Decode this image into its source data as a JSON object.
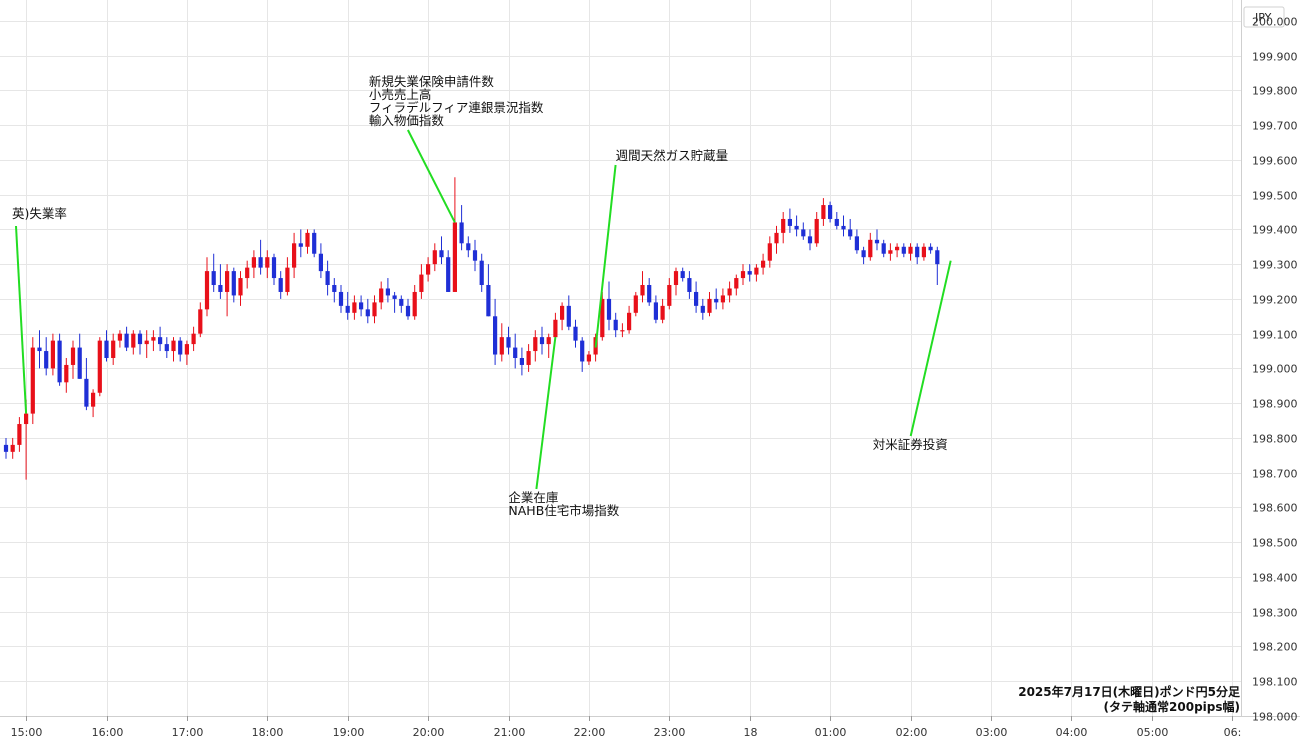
{
  "chart_data": {
    "type": "candlestick",
    "title": "2025年7月17日(木曜日)ポンド円5分足",
    "subtitle": "(タテ軸通常200pips幅)",
    "currency": "JPY",
    "colors": {
      "up": "#e8101a",
      "down": "#1f2fd6",
      "annotation_line": "#22dd22",
      "grid": "#e6e6e6"
    },
    "y_axis": {
      "range": [
        198.0,
        200.06
      ],
      "ticks": [
        "200.000",
        "199.900",
        "199.800",
        "199.700",
        "199.600",
        "199.500",
        "199.400",
        "199.300",
        "199.200",
        "199.100",
        "199.000",
        "198.900",
        "198.800",
        "198.700",
        "198.600",
        "198.500",
        "198.400",
        "198.300",
        "198.200",
        "198.100",
        "198.000"
      ]
    },
    "x_axis": {
      "ticks": [
        {
          "label": "15:00",
          "bar": 3
        },
        {
          "label": "16:00",
          "bar": 15
        },
        {
          "label": "17:00",
          "bar": 27
        },
        {
          "label": "18:00",
          "bar": 39
        },
        {
          "label": "19:00",
          "bar": 51
        },
        {
          "label": "20:00",
          "bar": 63
        },
        {
          "label": "21:00",
          "bar": 75
        },
        {
          "label": "22:00",
          "bar": 87
        },
        {
          "label": "23:00",
          "bar": 99
        },
        {
          "label": "18",
          "bar": 111
        },
        {
          "label": "01:00",
          "bar": 123
        },
        {
          "label": "02:00",
          "bar": 135
        },
        {
          "label": "03:00",
          "bar": 147
        },
        {
          "label": "04:00",
          "bar": 159
        },
        {
          "label": "05:00",
          "bar": 171
        },
        {
          "label": "06:",
          "bar": 183
        }
      ]
    },
    "candles": [
      [
        198.78,
        198.8,
        198.74,
        198.76
      ],
      [
        198.76,
        198.8,
        198.74,
        198.78
      ],
      [
        198.78,
        198.86,
        198.76,
        198.84
      ],
      [
        198.84,
        198.91,
        198.68,
        198.87
      ],
      [
        198.87,
        199.09,
        198.84,
        199.06
      ],
      [
        199.06,
        199.11,
        199.0,
        199.05
      ],
      [
        199.05,
        199.09,
        198.98,
        199.0
      ],
      [
        199.0,
        199.1,
        198.98,
        199.08
      ],
      [
        199.08,
        199.1,
        198.95,
        198.96
      ],
      [
        198.96,
        199.03,
        198.93,
        199.01
      ],
      [
        199.01,
        199.08,
        198.97,
        199.06
      ],
      [
        199.06,
        199.1,
        198.97,
        198.97
      ],
      [
        198.97,
        199.03,
        198.88,
        198.89
      ],
      [
        198.89,
        198.94,
        198.86,
        198.93
      ],
      [
        198.93,
        199.09,
        198.92,
        199.08
      ],
      [
        199.08,
        199.11,
        199.02,
        199.03
      ],
      [
        199.03,
        199.1,
        199.01,
        199.08
      ],
      [
        199.08,
        199.11,
        199.06,
        199.1
      ],
      [
        199.1,
        199.12,
        199.05,
        199.06
      ],
      [
        199.06,
        199.11,
        199.04,
        199.1
      ],
      [
        199.1,
        199.11,
        199.04,
        199.07
      ],
      [
        199.07,
        199.11,
        199.03,
        199.08
      ],
      [
        199.08,
        199.11,
        199.05,
        199.09
      ],
      [
        199.09,
        199.12,
        199.05,
        199.07
      ],
      [
        199.07,
        199.09,
        199.03,
        199.05
      ],
      [
        199.05,
        199.09,
        199.02,
        199.08
      ],
      [
        199.08,
        199.09,
        199.02,
        199.04
      ],
      [
        199.04,
        199.08,
        199.01,
        199.07
      ],
      [
        199.07,
        199.12,
        199.05,
        199.1
      ],
      [
        199.1,
        199.19,
        199.09,
        199.17
      ],
      [
        199.17,
        199.32,
        199.15,
        199.28
      ],
      [
        199.28,
        199.33,
        199.22,
        199.24
      ],
      [
        199.24,
        199.3,
        199.2,
        199.22
      ],
      [
        199.22,
        199.3,
        199.15,
        199.28
      ],
      [
        199.28,
        199.29,
        199.19,
        199.21
      ],
      [
        199.21,
        199.28,
        199.18,
        199.26
      ],
      [
        199.26,
        199.31,
        199.23,
        199.29
      ],
      [
        199.29,
        199.34,
        199.26,
        199.32
      ],
      [
        199.32,
        199.37,
        199.27,
        199.29
      ],
      [
        199.29,
        199.34,
        199.26,
        199.32
      ],
      [
        199.32,
        199.33,
        199.24,
        199.26
      ],
      [
        199.26,
        199.28,
        199.2,
        199.22
      ],
      [
        199.22,
        199.32,
        199.21,
        199.29
      ],
      [
        199.29,
        199.39,
        199.26,
        199.36
      ],
      [
        199.36,
        199.4,
        199.32,
        199.35
      ],
      [
        199.35,
        199.4,
        199.33,
        199.39
      ],
      [
        199.39,
        199.4,
        199.32,
        199.33
      ],
      [
        199.33,
        199.36,
        199.26,
        199.28
      ],
      [
        199.28,
        199.31,
        199.21,
        199.24
      ],
      [
        199.24,
        199.26,
        199.19,
        199.22
      ],
      [
        199.22,
        199.24,
        199.16,
        199.18
      ],
      [
        199.18,
        199.22,
        199.14,
        199.16
      ],
      [
        199.16,
        199.21,
        199.14,
        199.19
      ],
      [
        199.19,
        199.21,
        199.15,
        199.17
      ],
      [
        199.17,
        199.2,
        199.13,
        199.15
      ],
      [
        199.15,
        199.21,
        199.13,
        199.19
      ],
      [
        199.19,
        199.25,
        199.17,
        199.23
      ],
      [
        199.23,
        199.26,
        199.19,
        199.21
      ],
      [
        199.21,
        199.22,
        199.16,
        199.2
      ],
      [
        199.2,
        199.21,
        199.16,
        199.18
      ],
      [
        199.18,
        199.2,
        199.14,
        199.15
      ],
      [
        199.15,
        199.24,
        199.14,
        199.22
      ],
      [
        199.22,
        199.3,
        199.2,
        199.27
      ],
      [
        199.27,
        199.32,
        199.25,
        199.3
      ],
      [
        199.3,
        199.36,
        199.28,
        199.34
      ],
      [
        199.34,
        199.38,
        199.3,
        199.32
      ],
      [
        199.32,
        199.34,
        199.22,
        199.22
      ],
      [
        199.22,
        199.55,
        199.22,
        199.42
      ],
      [
        199.42,
        199.47,
        199.34,
        199.36
      ],
      [
        199.36,
        199.38,
        199.32,
        199.34
      ],
      [
        199.34,
        199.37,
        199.28,
        199.31
      ],
      [
        199.31,
        199.33,
        199.22,
        199.24
      ],
      [
        199.24,
        199.3,
        199.15,
        199.15
      ],
      [
        199.15,
        199.2,
        199.01,
        199.04
      ],
      [
        199.04,
        199.13,
        199.02,
        199.09
      ],
      [
        199.09,
        199.12,
        199.04,
        199.06
      ],
      [
        199.06,
        199.1,
        199.0,
        199.03
      ],
      [
        199.03,
        199.06,
        198.98,
        199.01
      ],
      [
        199.01,
        199.07,
        198.99,
        199.05
      ],
      [
        199.05,
        199.11,
        199.02,
        199.09
      ],
      [
        199.09,
        199.12,
        199.04,
        199.07
      ],
      [
        199.07,
        199.1,
        199.03,
        199.09
      ],
      [
        199.09,
        199.16,
        199.08,
        199.14
      ],
      [
        199.14,
        199.19,
        199.11,
        199.18
      ],
      [
        199.18,
        199.21,
        199.11,
        199.12
      ],
      [
        199.12,
        199.14,
        199.06,
        199.08
      ],
      [
        199.08,
        199.09,
        198.99,
        199.02
      ],
      [
        199.02,
        199.05,
        199.01,
        199.04
      ],
      [
        199.04,
        199.1,
        199.02,
        199.09
      ],
      [
        199.09,
        199.22,
        199.08,
        199.2
      ],
      [
        199.2,
        199.25,
        199.11,
        199.14
      ],
      [
        199.14,
        199.16,
        199.09,
        199.11
      ],
      [
        199.11,
        199.13,
        199.09,
        199.11
      ],
      [
        199.11,
        199.18,
        199.1,
        199.16
      ],
      [
        199.16,
        199.22,
        199.15,
        199.21
      ],
      [
        199.21,
        199.28,
        199.19,
        199.24
      ],
      [
        199.24,
        199.26,
        199.18,
        199.19
      ],
      [
        199.19,
        199.21,
        199.13,
        199.14
      ],
      [
        199.14,
        199.2,
        199.13,
        199.18
      ],
      [
        199.18,
        199.26,
        199.17,
        199.24
      ],
      [
        199.24,
        199.29,
        199.21,
        199.28
      ],
      [
        199.28,
        199.29,
        199.25,
        199.26
      ],
      [
        199.26,
        199.28,
        199.2,
        199.22
      ],
      [
        199.22,
        199.25,
        199.16,
        199.18
      ],
      [
        199.18,
        199.2,
        199.14,
        199.16
      ],
      [
        199.16,
        199.22,
        199.15,
        199.2
      ],
      [
        199.2,
        199.23,
        199.17,
        199.19
      ],
      [
        199.19,
        199.23,
        199.17,
        199.21
      ],
      [
        199.21,
        199.25,
        199.19,
        199.23
      ],
      [
        199.23,
        199.27,
        199.21,
        199.26
      ],
      [
        199.26,
        199.3,
        199.24,
        199.28
      ],
      [
        199.28,
        199.3,
        199.25,
        199.27
      ],
      [
        199.27,
        199.3,
        199.25,
        199.29
      ],
      [
        199.29,
        199.33,
        199.27,
        199.31
      ],
      [
        199.31,
        199.38,
        199.29,
        199.36
      ],
      [
        199.36,
        199.41,
        199.33,
        199.39
      ],
      [
        199.39,
        199.45,
        199.36,
        199.43
      ],
      [
        199.43,
        199.46,
        199.39,
        199.41
      ],
      [
        199.41,
        199.44,
        199.38,
        199.4
      ],
      [
        199.4,
        199.42,
        199.37,
        199.38
      ],
      [
        199.38,
        199.4,
        199.34,
        199.36
      ],
      [
        199.36,
        199.45,
        199.35,
        199.43
      ],
      [
        199.43,
        199.49,
        199.41,
        199.47
      ],
      [
        199.47,
        199.48,
        199.42,
        199.43
      ],
      [
        199.43,
        199.45,
        199.4,
        199.41
      ],
      [
        199.41,
        199.44,
        199.38,
        199.4
      ],
      [
        199.4,
        199.43,
        199.37,
        199.38
      ],
      [
        199.38,
        199.4,
        199.33,
        199.34
      ],
      [
        199.34,
        199.35,
        199.3,
        199.32
      ],
      [
        199.32,
        199.39,
        199.31,
        199.37
      ],
      [
        199.37,
        199.4,
        199.34,
        199.36
      ],
      [
        199.36,
        199.37,
        199.32,
        199.33
      ],
      [
        199.33,
        199.36,
        199.31,
        199.34
      ],
      [
        199.34,
        199.36,
        199.32,
        199.35
      ],
      [
        199.35,
        199.36,
        199.32,
        199.33
      ],
      [
        199.33,
        199.36,
        199.31,
        199.35
      ],
      [
        199.35,
        199.36,
        199.3,
        199.32
      ],
      [
        199.32,
        199.36,
        199.31,
        199.35
      ],
      [
        199.35,
        199.36,
        199.33,
        199.34
      ],
      [
        199.34,
        199.35,
        199.24,
        199.3
      ]
    ],
    "annotations": [
      {
        "lines": [
          "英)失業率"
        ],
        "bar": 3,
        "price": 198.87,
        "label_pos": "upper-left"
      },
      {
        "lines": [
          "新規失業保険申請件数",
          "小売売上高",
          "フィラデルフィア連銀景況指数",
          "輸入物価指数"
        ],
        "bar": 67,
        "price": 199.42,
        "label_pos": "top"
      },
      {
        "lines": [
          "週間天然ガス貯蔵量"
        ],
        "bar": 88,
        "price": 199.06,
        "label_pos": "top"
      },
      {
        "lines": [
          "企業在庫",
          "NAHB住宅市場指数"
        ],
        "bar": 82,
        "price": 199.09,
        "label_pos": "bottom"
      },
      {
        "lines": [
          "対米証券投資"
        ],
        "bar": 141,
        "price": 199.31,
        "label_pos": "bottom"
      }
    ]
  }
}
